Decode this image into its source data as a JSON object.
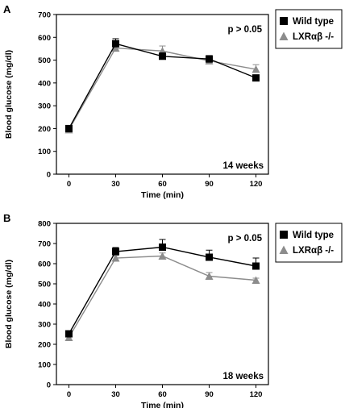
{
  "chart_data": [
    {
      "type": "line",
      "panel_label": "A",
      "annotation": "p > 0.05",
      "subtitle": "14 weeks",
      "xlabel": "Time (min)",
      "ylabel": "Blood glucose (mg/dl)",
      "x": [
        0,
        30,
        60,
        90,
        120
      ],
      "x_tick_labels": [
        "0",
        "30",
        "60",
        "90",
        "120"
      ],
      "y_ticks": [
        0,
        100,
        200,
        300,
        400,
        500,
        600,
        700
      ],
      "ylim": [
        0,
        700
      ],
      "grid": false,
      "legend_position": "outside-right",
      "series": [
        {
          "name": "Wild type",
          "marker": "square",
          "color": "#000000",
          "values": [
            200,
            572,
            517,
            505,
            422
          ],
          "errors": [
            8,
            22,
            15,
            15,
            12
          ]
        },
        {
          "name": "LXRαβ -/-",
          "marker": "triangle",
          "color": "#8c8c8c",
          "values": [
            195,
            553,
            540,
            497,
            460
          ],
          "errors": [
            8,
            15,
            22,
            12,
            20
          ]
        }
      ]
    },
    {
      "type": "line",
      "panel_label": "B",
      "annotation": "p > 0.05",
      "subtitle": "18 weeks",
      "xlabel": "Time (min)",
      "ylabel": "Blood glucose (mg/dl)",
      "x": [
        0,
        30,
        60,
        90,
        120
      ],
      "x_tick_labels": [
        "0",
        "30",
        "60",
        "90",
        "120"
      ],
      "y_ticks": [
        0,
        100,
        200,
        300,
        400,
        500,
        600,
        700,
        800
      ],
      "ylim": [
        0,
        800
      ],
      "grid": false,
      "legend_position": "outside-right",
      "series": [
        {
          "name": "Wild type",
          "marker": "square",
          "color": "#000000",
          "values": [
            252,
            660,
            682,
            632,
            588
          ],
          "errors": [
            15,
            20,
            38,
            35,
            40
          ]
        },
        {
          "name": "LXRαβ -/-",
          "marker": "triangle",
          "color": "#8c8c8c",
          "values": [
            234,
            628,
            638,
            538,
            518
          ],
          "errors": [
            12,
            12,
            15,
            18,
            10
          ]
        }
      ]
    }
  ]
}
